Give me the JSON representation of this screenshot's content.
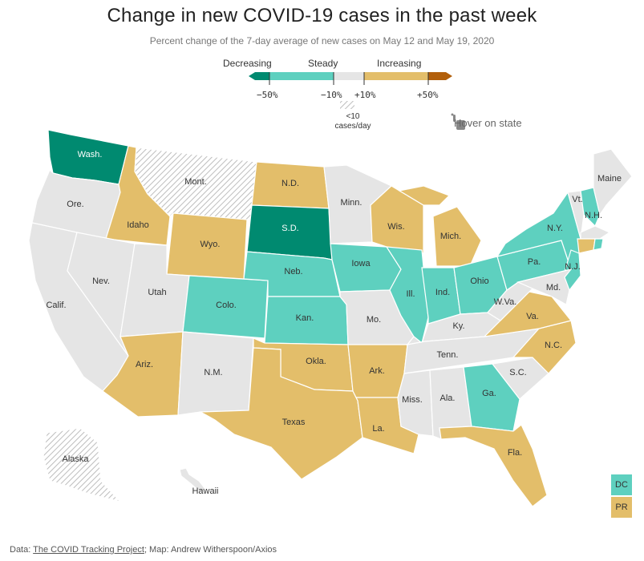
{
  "title": "Change in new COVID-19 cases in the past week",
  "subtitle": "Percent change of the 7-day average of new cases on May 12 and May 19, 2020",
  "legend": {
    "decreasing": "Decreasing",
    "steady": "Steady",
    "increasing": "Increasing",
    "ticks": [
      "−50%",
      "−10%",
      "+10%",
      "+50%"
    ],
    "nodata_line1": "<10",
    "nodata_line2": "cases/day",
    "colors": {
      "strong_decrease": "#008A70",
      "decrease": "#5ED0BF",
      "steady": "#E5E5E5",
      "increase": "#E3BE6A",
      "strong_increase": "#B25F0B"
    }
  },
  "hover_hint": "Hover on state",
  "hover_icon": "pointer-hand-icon",
  "states": {
    "wash": "Wash.",
    "ore": "Ore.",
    "calif": "Calif.",
    "idaho": "Idaho",
    "nev": "Nev.",
    "mont": "Mont.",
    "wyo": "Wyo.",
    "utah": "Utah",
    "ariz": "Ariz.",
    "colo": "Colo.",
    "nm": "N.M.",
    "nd": "N.D.",
    "sd": "S.D.",
    "neb": "Neb.",
    "kan": "Kan.",
    "okla": "Okla.",
    "texas": "Texas",
    "minn": "Minn.",
    "iowa": "Iowa",
    "mo": "Mo.",
    "ark": "Ark.",
    "la": "La.",
    "wis": "Wis.",
    "ill": "Ill.",
    "mich": "Mich.",
    "ind": "Ind.",
    "ohio": "Ohio",
    "ky": "Ky.",
    "tenn": "Tenn.",
    "miss": "Miss.",
    "ala": "Ala.",
    "ga": "Ga.",
    "fla": "Fla.",
    "sc": "S.C.",
    "nc": "N.C.",
    "va": "Va.",
    "wva": "W.Va.",
    "pa": "Pa.",
    "ny": "N.Y.",
    "nj": "N.J.",
    "md": "Md.",
    "vt": "Vt.",
    "nh": "N.H.",
    "maine": "Maine",
    "alaska": "Alaska",
    "hawaii": "Hawaii"
  },
  "territories": {
    "dc": "DC",
    "pr": "PR"
  },
  "footer": {
    "prefix": "Data: ",
    "source_link": "The COVID Tracking Project",
    "suffix": "; Map: Andrew Witherspoon/Axios"
  }
}
